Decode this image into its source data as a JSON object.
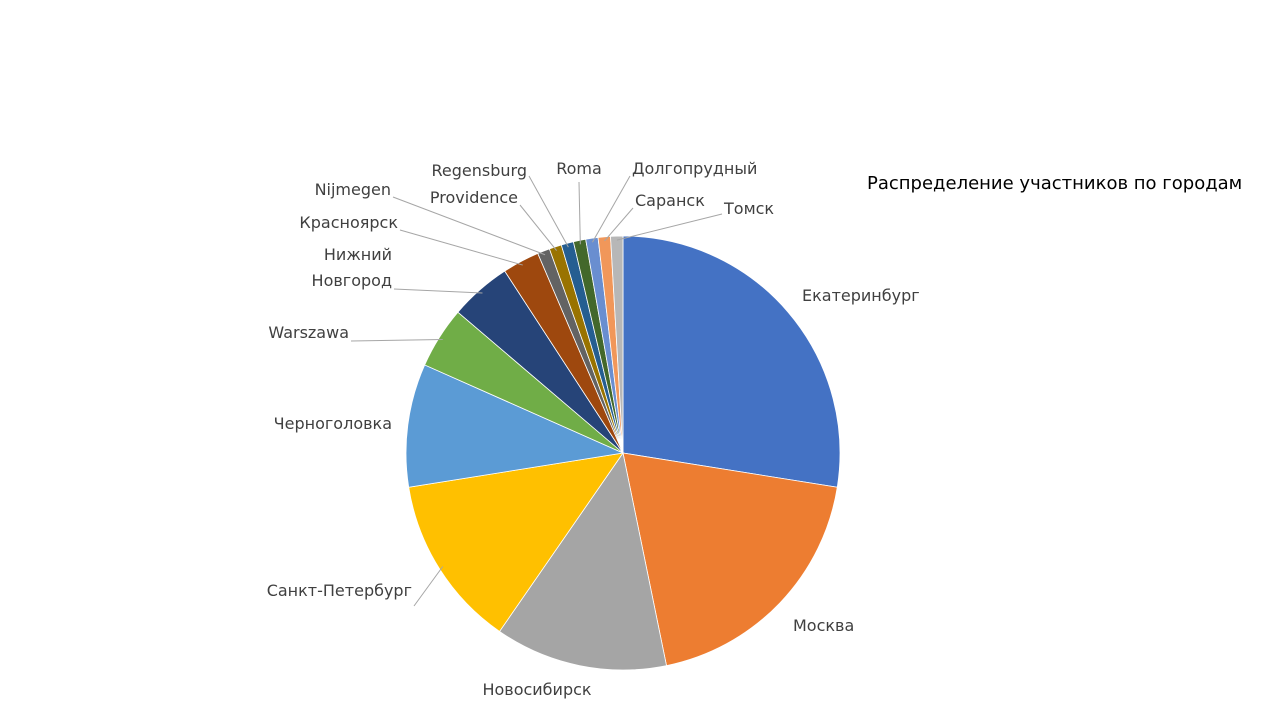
{
  "chart_data": {
    "type": "pie",
    "title": "Распределение участников по городам",
    "categories": [
      "Екатеринбург",
      "Москва",
      "Новосибирск",
      "Санкт-Петербург",
      "Черноголовка",
      "Warszawa",
      "Нижний Новгород",
      "Красноярск",
      "Nijmegen",
      "Providence",
      "Regensburg",
      "Roma",
      "Долгопрудный",
      "Саранск",
      "Томск"
    ],
    "values": [
      30,
      21,
      14,
      14,
      10,
      5,
      5,
      3,
      1,
      1,
      1,
      1,
      1,
      1,
      1
    ],
    "colors": [
      "#4472c4",
      "#ed7d31",
      "#a5a5a5",
      "#ffc000",
      "#5b9bd5",
      "#70ad47",
      "#264478",
      "#9e480e",
      "#636363",
      "#997300",
      "#255e91",
      "#43682b",
      "#698ed0",
      "#f1975a",
      "#b7b7b7"
    ]
  }
}
